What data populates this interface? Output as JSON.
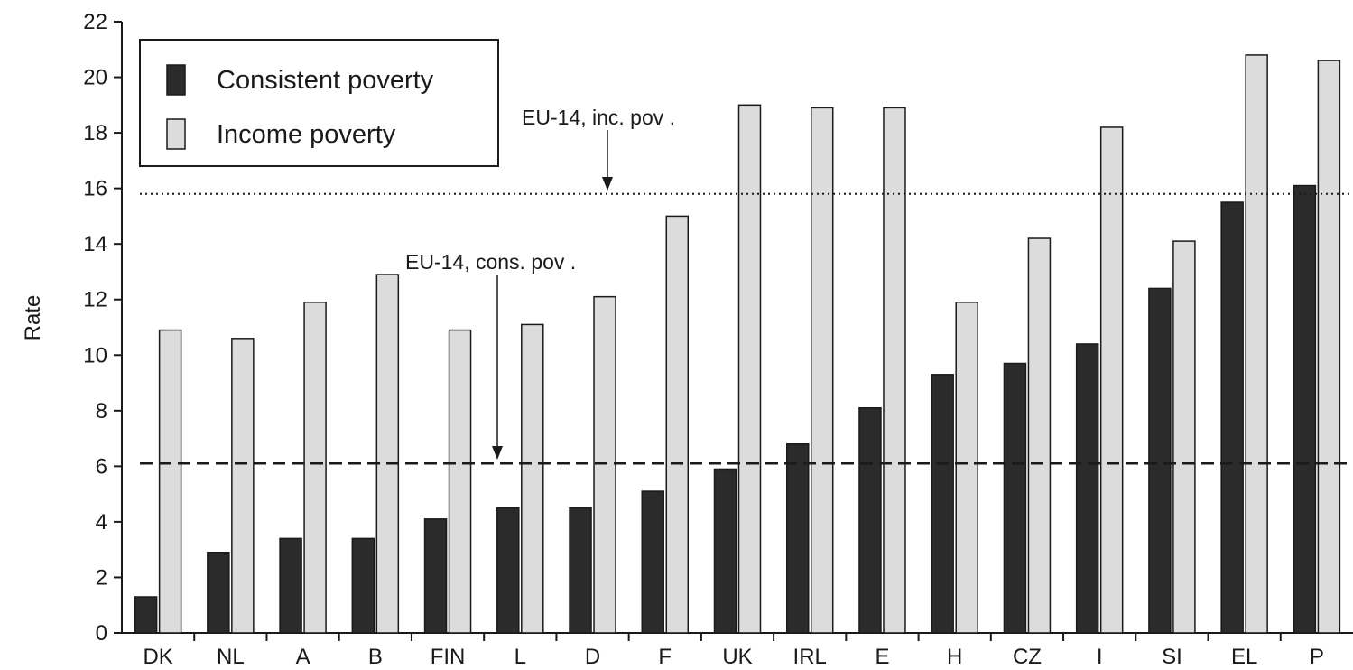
{
  "chart_data": {
    "type": "bar",
    "title": "",
    "xlabel": "",
    "ylabel": "Rate",
    "ylim": [
      0,
      22
    ],
    "yticks": [
      0,
      2,
      4,
      6,
      8,
      10,
      12,
      14,
      16,
      18,
      20,
      22
    ],
    "grid": false,
    "legend_position": "top-left",
    "categories": [
      "DK",
      "NL",
      "A",
      "B",
      "FIN",
      "L",
      "D",
      "F",
      "UK",
      "IRL",
      "E",
      "H",
      "CZ",
      "I",
      "SI",
      "EL",
      "P"
    ],
    "series": [
      {
        "name": "Consistent poverty",
        "color": "#2b2b2b",
        "values": [
          1.3,
          2.9,
          3.4,
          3.4,
          4.1,
          4.5,
          4.5,
          5.1,
          5.9,
          6.8,
          8.1,
          9.3,
          9.7,
          10.4,
          12.4,
          15.5,
          16.1
        ]
      },
      {
        "name": "Income poverty",
        "color": "#dcdcdc",
        "values": [
          10.9,
          10.6,
          11.9,
          12.9,
          10.9,
          11.1,
          12.1,
          15.0,
          19.0,
          18.9,
          18.9,
          11.9,
          14.2,
          18.2,
          14.1,
          20.8,
          20.6
        ]
      }
    ],
    "reference_lines": [
      {
        "label": "EU-14, inc. pov .",
        "value": 15.8,
        "style": "dotted"
      },
      {
        "label": "EU-14, cons. pov .",
        "value": 6.1,
        "style": "dashed"
      }
    ]
  }
}
